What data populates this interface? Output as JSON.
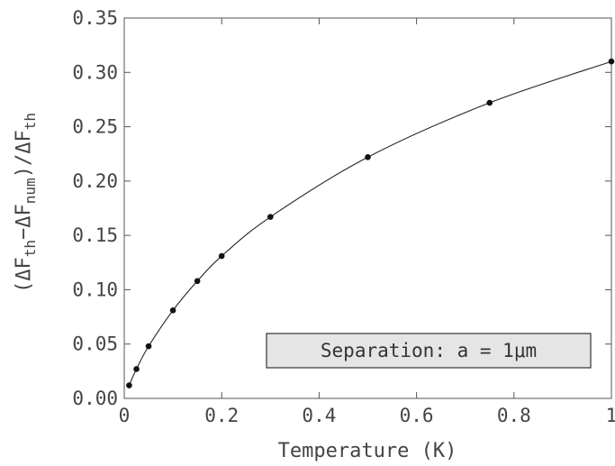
{
  "chart_data": {
    "type": "line",
    "title": "",
    "xlabel": "Temperature (K)",
    "ylabel": "(ΔF_th − ΔF_num)/ΔF_th",
    "ylabel_parts": {
      "open": "(",
      "delta1": "Δ",
      "f1": "F",
      "sub1": "th",
      "minus": "−",
      "delta2": "Δ",
      "f2": "F",
      "sub2": "num",
      "close": ")",
      "slash": "/",
      "delta3": "Δ",
      "f3": "F",
      "sub3": "th"
    },
    "xlim": [
      0,
      1
    ],
    "ylim": [
      0,
      0.35
    ],
    "x_ticks": [
      "0",
      "0.2",
      "0.4",
      "0.6",
      "0.8",
      "1"
    ],
    "y_ticks": [
      "0.00",
      "0.05",
      "0.10",
      "0.15",
      "0.20",
      "0.25",
      "0.30",
      "0.35"
    ],
    "grid": false,
    "series": [
      {
        "x": [
          0.01,
          0.025,
          0.05,
          0.1,
          0.15,
          0.2,
          0.3,
          0.5,
          0.75,
          1.0
        ],
        "y": [
          0.012,
          0.027,
          0.048,
          0.081,
          0.108,
          0.131,
          0.167,
          0.222,
          0.272,
          0.31
        ]
      }
    ],
    "annotation": "Separation: a = 1μm",
    "annotation_placement": "bottom-right"
  }
}
